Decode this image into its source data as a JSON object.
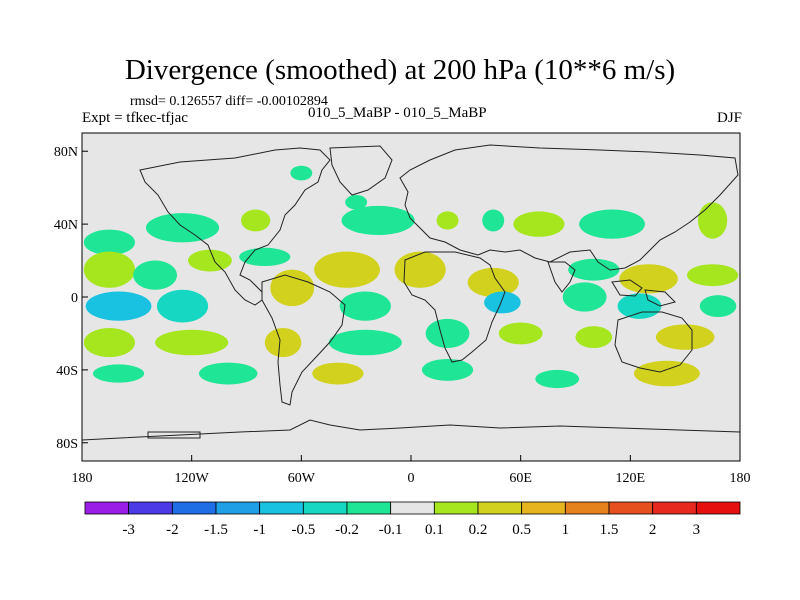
{
  "title": "Divergence (smoothed) at 200 hPa (10**6 m/s)",
  "stats_line": "rmsd= 0.126557 diff= -0.00102894",
  "experiment_label": "Expt = tfkec-tfjac",
  "case_label": "010_5_MaBP - 010_5_MaBP",
  "season_label": "DJF",
  "map": {
    "lon_range": [
      -180,
      180
    ],
    "lat_range": [
      -90,
      90
    ],
    "y_tick_labels": [
      "80N",
      "40N",
      "0",
      "40S",
      "80S"
    ],
    "y_tick_values": [
      80,
      40,
      0,
      -40,
      -80
    ],
    "x_tick_labels": [
      "180",
      "120W",
      "60W",
      "0",
      "60E",
      "120E",
      "180"
    ],
    "x_tick_values": [
      -180,
      -120,
      -60,
      0,
      60,
      120,
      180
    ],
    "background_color": "#e6e6e6"
  },
  "colorbar": {
    "labels": [
      "-3",
      "-2",
      "-1.5",
      "-1",
      "-0.5",
      "-0.2",
      "-0.1",
      "0.1",
      "0.2",
      "0.5",
      "1",
      "1.5",
      "2",
      "3"
    ],
    "colors": [
      "#9b1ee6",
      "#4b3ae6",
      "#1f6ee6",
      "#1e9fe6",
      "#18c2e0",
      "#16d8c2",
      "#1ee696",
      "#e6e6e6",
      "#a6e61e",
      "#d2d21e",
      "#e6b41e",
      "#e6821e",
      "#e6501e",
      "#e6281e",
      "#e60f0f"
    ]
  },
  "field": {
    "negative_colors": {
      "-0.1": "#1ee696",
      "-0.2": "#16d8c2",
      "-0.5": "#18c2e0"
    },
    "positive_colors": {
      "0.1": "#a6e61e",
      "0.2": "#d2d21e"
    },
    "blobs": [
      {
        "lon": -165,
        "lat": 30,
        "rlon": 14,
        "rlat": 7,
        "value": -0.1
      },
      {
        "lon": -125,
        "lat": 38,
        "rlon": 20,
        "rlat": 8,
        "value": -0.1
      },
      {
        "lon": -85,
        "lat": 42,
        "rlon": 8,
        "rlat": 6,
        "value": 0.1
      },
      {
        "lon": -60,
        "lat": 68,
        "rlon": 6,
        "rlat": 4,
        "value": -0.1
      },
      {
        "lon": -30,
        "lat": 52,
        "rlon": 6,
        "rlat": 4,
        "value": -0.1
      },
      {
        "lon": -18,
        "lat": 42,
        "rlon": 20,
        "rlat": 8,
        "value": -0.1
      },
      {
        "lon": 20,
        "lat": 42,
        "rlon": 6,
        "rlat": 5,
        "value": 0.1
      },
      {
        "lon": 45,
        "lat": 42,
        "rlon": 6,
        "rlat": 6,
        "value": -0.1
      },
      {
        "lon": 70,
        "lat": 40,
        "rlon": 14,
        "rlat": 7,
        "value": 0.1
      },
      {
        "lon": 110,
        "lat": 40,
        "rlon": 18,
        "rlat": 8,
        "value": -0.1
      },
      {
        "lon": 165,
        "lat": 42,
        "rlon": 8,
        "rlat": 10,
        "value": 0.1
      },
      {
        "lon": -165,
        "lat": 15,
        "rlon": 14,
        "rlat": 10,
        "value": 0.1
      },
      {
        "lon": -140,
        "lat": 12,
        "rlon": 12,
        "rlat": 8,
        "value": -0.1
      },
      {
        "lon": -110,
        "lat": 20,
        "rlon": 12,
        "rlat": 6,
        "value": 0.1
      },
      {
        "lon": -80,
        "lat": 22,
        "rlon": 14,
        "rlat": 5,
        "value": -0.1
      },
      {
        "lon": -35,
        "lat": 15,
        "rlon": 18,
        "rlat": 10,
        "value": 0.2
      },
      {
        "lon": 5,
        "lat": 15,
        "rlon": 14,
        "rlat": 10,
        "value": 0.2
      },
      {
        "lon": 45,
        "lat": 8,
        "rlon": 14,
        "rlat": 8,
        "value": 0.2
      },
      {
        "lon": 100,
        "lat": 15,
        "rlon": 14,
        "rlat": 6,
        "value": -0.1
      },
      {
        "lon": 130,
        "lat": 10,
        "rlon": 16,
        "rlat": 8,
        "value": 0.2
      },
      {
        "lon": 165,
        "lat": 12,
        "rlon": 14,
        "rlat": 6,
        "value": 0.1
      },
      {
        "lon": -160,
        "lat": -5,
        "rlon": 18,
        "rlat": 8,
        "value": -0.5
      },
      {
        "lon": -125,
        "lat": -5,
        "rlon": 14,
        "rlat": 9,
        "value": -0.2
      },
      {
        "lon": -65,
        "lat": 5,
        "rlon": 12,
        "rlat": 10,
        "value": 0.2
      },
      {
        "lon": -25,
        "lat": -5,
        "rlon": 14,
        "rlat": 8,
        "value": -0.1
      },
      {
        "lon": 50,
        "lat": -3,
        "rlon": 10,
        "rlat": 6,
        "value": -0.5
      },
      {
        "lon": 95,
        "lat": 0,
        "rlon": 12,
        "rlat": 8,
        "value": -0.1
      },
      {
        "lon": 125,
        "lat": -5,
        "rlon": 12,
        "rlat": 7,
        "value": -0.2
      },
      {
        "lon": 168,
        "lat": -5,
        "rlon": 10,
        "rlat": 6,
        "value": -0.1
      },
      {
        "lon": -165,
        "lat": -25,
        "rlon": 14,
        "rlat": 8,
        "value": 0.1
      },
      {
        "lon": -120,
        "lat": -25,
        "rlon": 20,
        "rlat": 7,
        "value": 0.1
      },
      {
        "lon": -70,
        "lat": -25,
        "rlon": 10,
        "rlat": 8,
        "value": 0.2
      },
      {
        "lon": -25,
        "lat": -25,
        "rlon": 20,
        "rlat": 7,
        "value": -0.1
      },
      {
        "lon": 20,
        "lat": -20,
        "rlon": 12,
        "rlat": 8,
        "value": -0.1
      },
      {
        "lon": 60,
        "lat": -20,
        "rlon": 12,
        "rlat": 6,
        "value": 0.1
      },
      {
        "lon": 100,
        "lat": -22,
        "rlon": 10,
        "rlat": 6,
        "value": 0.1
      },
      {
        "lon": 150,
        "lat": -22,
        "rlon": 16,
        "rlat": 7,
        "value": 0.2
      },
      {
        "lon": -160,
        "lat": -42,
        "rlon": 14,
        "rlat": 5,
        "value": -0.1
      },
      {
        "lon": -100,
        "lat": -42,
        "rlon": 16,
        "rlat": 6,
        "value": -0.1
      },
      {
        "lon": -40,
        "lat": -42,
        "rlon": 14,
        "rlat": 6,
        "value": 0.2
      },
      {
        "lon": 20,
        "lat": -40,
        "rlon": 14,
        "rlat": 6,
        "value": -0.1
      },
      {
        "lon": 80,
        "lat": -45,
        "rlon": 12,
        "rlat": 5,
        "value": -0.1
      },
      {
        "lon": 140,
        "lat": -42,
        "rlon": 18,
        "rlat": 7,
        "value": 0.2
      }
    ]
  }
}
